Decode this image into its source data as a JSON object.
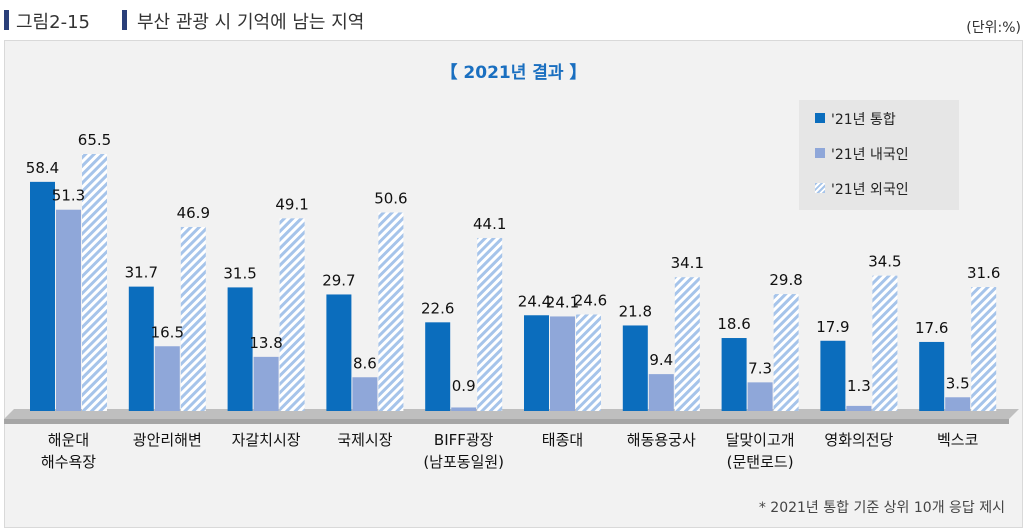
{
  "header": {
    "figure_number": "그림2-15",
    "figure_title": "부산 관광 시 기억에 남는 지역",
    "unit": "(단위:%)",
    "bar_color": "#2a3f7a"
  },
  "footnote": "* 2021년 통합 기준 상위 10개 응답 제시",
  "chart_data": {
    "type": "bar",
    "title": "【 2021년 결과 】",
    "categories": [
      [
        "해운대",
        "해수욕장"
      ],
      [
        "광안리해변"
      ],
      [
        "자갈치시장"
      ],
      [
        "국제시장"
      ],
      [
        "BIFF광장",
        "(남포동일원)"
      ],
      [
        "태종대"
      ],
      [
        "해동용궁사"
      ],
      [
        "달맞이고개",
        "(문탠로드)"
      ],
      [
        "영화의전당"
      ],
      [
        "벡스코"
      ]
    ],
    "series": [
      {
        "name": "'21년 통합",
        "color": "#0b6dbd",
        "values": [
          58.4,
          31.7,
          31.5,
          29.7,
          22.6,
          24.4,
          21.8,
          18.6,
          17.9,
          17.6
        ]
      },
      {
        "name": "'21년 내국인",
        "color": "#8fa7d9",
        "values": [
          51.3,
          16.5,
          13.8,
          8.6,
          0.9,
          24.1,
          9.4,
          7.3,
          1.3,
          3.5
        ]
      },
      {
        "name": "'21년 외국인",
        "color": "#a6c4ea",
        "pattern": "diagonal-stripes",
        "values": [
          65.5,
          46.9,
          49.1,
          50.6,
          44.1,
          24.6,
          34.1,
          29.8,
          34.5,
          31.6
        ]
      }
    ],
    "ylim": [
      0,
      65.5
    ],
    "grid": false,
    "legend": "top-right"
  }
}
